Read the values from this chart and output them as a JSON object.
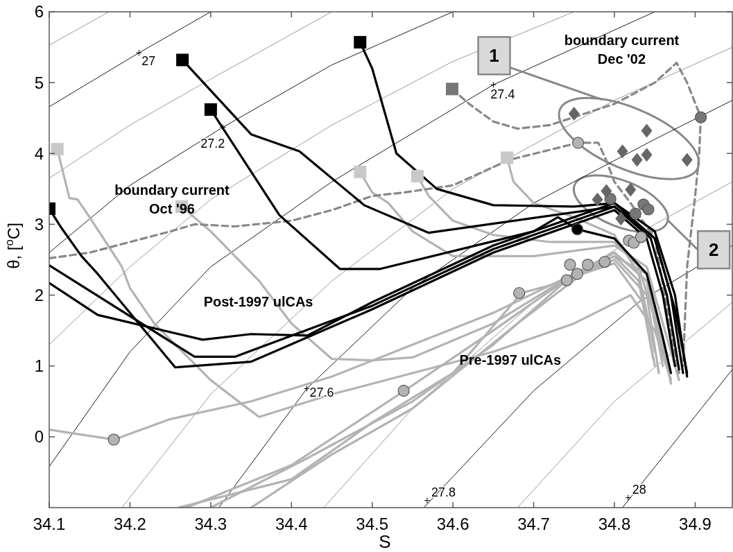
{
  "chart_data": {
    "type": "line",
    "xlabel": "S",
    "ylabel": "θ, [$^{o}$C]",
    "xlim": [
      34.1,
      34.946
    ],
    "ylim": [
      -1,
      6
    ],
    "xticks": [
      34.1,
      34.2,
      34.3,
      34.4,
      34.5,
      34.6,
      34.7,
      34.8,
      34.9
    ],
    "yticks": [
      0,
      1,
      2,
      3,
      4,
      5,
      6
    ],
    "grid": false,
    "series": [
      {
        "color": "#999999",
        "x": [
          34.1,
          34.174
        ],
        "values": [
          5.53,
          6.0
        ]
      },
      {
        "color": "#1a1a1a",
        "x": [
          34.1,
          34.211,
          34.3
        ],
        "values": [
          4.66,
          5.42,
          6.0
        ]
      },
      {
        "color": "#999999",
        "x": [
          34.1,
          34.2,
          34.3,
          34.45
        ],
        "values": [
          3.65,
          4.4,
          5.05,
          6.0
        ]
      },
      {
        "color": "#1a1a1a",
        "x": [
          34.1,
          34.2,
          34.315,
          34.45,
          34.6
        ],
        "values": [
          2.6,
          3.55,
          4.37,
          5.25,
          6.0
        ]
      },
      {
        "color": "#999999",
        "x": [
          34.1,
          34.2,
          34.3,
          34.45,
          34.6,
          34.75
        ],
        "values": [
          1.3,
          2.4,
          3.35,
          4.4,
          5.3,
          6.0
        ]
      },
      {
        "color": "#1a1a1a",
        "x": [
          34.1,
          34.2,
          34.3,
          34.45,
          34.65,
          34.85
        ],
        "values": [
          -0.42,
          1.2,
          2.4,
          3.6,
          4.97,
          6.0
        ]
      },
      {
        "color": "#999999",
        "x": [
          34.19,
          34.3,
          34.45,
          34.6,
          34.8,
          34.946
        ],
        "values": [
          -1,
          0.6,
          2.2,
          3.5,
          4.75,
          5.5
        ]
      },
      {
        "color": "#1a1a1a",
        "x": [
          34.31,
          34.419,
          34.55,
          34.7,
          34.85,
          34.946
        ],
        "values": [
          -1,
          0.68,
          2.1,
          3.3,
          4.2,
          4.75
        ]
      },
      {
        "color": "#999999",
        "x": [
          34.44,
          34.55,
          34.7,
          34.85,
          34.946
        ],
        "values": [
          -1,
          0.4,
          1.9,
          3.0,
          3.6
        ]
      },
      {
        "color": "#1a1a1a",
        "x": [
          34.564,
          34.7,
          34.83,
          34.946
        ],
        "values": [
          -1,
          0.65,
          1.9,
          2.7
        ]
      },
      {
        "color": "#999999",
        "x": [
          34.68,
          34.8,
          34.946
        ],
        "values": [
          -1,
          0.5,
          1.9
        ]
      },
      {
        "color": "#1a1a1a",
        "x": [
          34.81,
          34.946
        ],
        "values": [
          -1,
          0.95
        ]
      },
      {
        "color": "#b3b3b3",
        "x": [
          34.11,
          34.125,
          34.135,
          34.15,
          34.19,
          34.2,
          34.23,
          34.3,
          34.34,
          34.36,
          34.45,
          34.55,
          34.65,
          34.75,
          34.82,
          34.85,
          34.87
        ],
        "values": [
          4.06,
          3.37,
          3.35,
          3.1,
          2.4,
          2.1,
          1.6,
          0.8,
          0.45,
          0.28,
          0.6,
          0.9,
          1.2,
          1.6,
          2.0,
          1.5,
          0.8
        ]
      },
      {
        "color": "#b3b3b3",
        "x": [
          34.264,
          34.3,
          34.36,
          34.4,
          34.45,
          34.5,
          34.55,
          34.65,
          34.75,
          34.8,
          34.84,
          34.86,
          34.87
        ],
        "values": [
          3.25,
          2.9,
          2.2,
          1.6,
          1.1,
          1.08,
          1.12,
          1.6,
          2.3,
          2.6,
          2.2,
          1.2,
          0.8
        ]
      },
      {
        "color": "#b3b3b3",
        "x": [
          34.1,
          34.18,
          34.25,
          34.35,
          34.45,
          34.55,
          34.65,
          34.75,
          34.8,
          34.84,
          34.86
        ],
        "values": [
          0.1,
          -0.04,
          0.25,
          0.5,
          0.85,
          1.3,
          1.75,
          2.3,
          2.6,
          2.2,
          1.0
        ]
      },
      {
        "color": "#b3b3b3",
        "x": [
          34.485,
          34.5,
          34.52,
          34.55,
          34.6,
          34.7,
          34.8,
          34.84,
          34.865,
          34.88
        ],
        "values": [
          3.74,
          3.45,
          3.3,
          2.9,
          2.55,
          2.55,
          2.7,
          2.4,
          1.4,
          0.8
        ]
      },
      {
        "color": "#b3b3b3",
        "x": [
          34.556,
          34.57,
          34.6,
          34.65,
          34.72,
          34.8,
          34.83,
          34.86,
          34.87
        ],
        "values": [
          3.68,
          3.4,
          3.05,
          2.85,
          2.75,
          2.75,
          2.4,
          1.3,
          0.75
        ]
      },
      {
        "color": "#b3b3b3",
        "x": [
          34.667,
          34.675,
          34.7,
          34.75,
          34.8,
          34.83,
          34.85
        ],
        "values": [
          3.94,
          3.6,
          3.3,
          3.1,
          2.85,
          2.3,
          1.2
        ]
      },
      {
        "color": "#b3b3b3",
        "x": [
          34.27,
          34.4,
          34.54,
          34.65,
          34.75,
          34.8,
          34.83,
          34.85
        ],
        "values": [
          -1,
          -0.4,
          0.65,
          1.5,
          2.3,
          2.55,
          2.2,
          1.0
        ]
      },
      {
        "color": "#b3b3b3",
        "x": [
          34.3,
          34.42,
          34.55,
          34.65,
          34.74,
          34.8,
          34.84,
          34.855
        ],
        "values": [
          -1,
          -0.3,
          0.5,
          1.3,
          2.2,
          2.5,
          2.0,
          0.9
        ]
      },
      {
        "color": "#b3b3b3",
        "x": [
          34.35,
          34.45,
          34.55,
          34.68,
          34.76,
          34.8,
          34.835,
          34.848
        ],
        "values": [
          -1,
          -0.25,
          0.4,
          1.6,
          2.3,
          2.45,
          1.9,
          1.1
        ]
      },
      {
        "color": "#b3b3b3",
        "x": [
          34.26,
          34.4,
          34.5,
          34.6,
          34.685,
          34.743,
          34.8,
          34.84,
          34.86
        ],
        "values": [
          -1,
          -0.6,
          0.2,
          0.9,
          2.03,
          2.21,
          2.55,
          2.3,
          1.2
        ]
      },
      {
        "color": "#888888",
        "line_style": "dashed",
        "x": [
          34.1,
          34.15,
          34.2,
          34.25,
          34.28,
          34.33,
          34.4,
          34.45,
          34.5,
          34.54,
          34.6,
          34.67,
          34.755,
          34.78,
          34.79,
          34.8,
          34.82,
          34.85,
          34.87,
          34.88
        ],
        "values": [
          2.52,
          2.6,
          2.75,
          2.9,
          3.0,
          2.97,
          3.05,
          3.2,
          3.4,
          3.45,
          3.55,
          3.91,
          4.15,
          4.15,
          3.9,
          3.6,
          3.3,
          2.8,
          1.5,
          0.9
        ]
      },
      {
        "color": "#888888",
        "line_style": "dashed",
        "x": [
          34.599,
          34.62,
          34.65,
          34.68,
          34.72,
          34.76,
          34.8,
          34.85,
          34.877,
          34.89,
          34.907,
          34.905,
          34.9,
          34.89,
          34.885
        ],
        "values": [
          4.91,
          4.7,
          4.45,
          4.35,
          4.4,
          4.55,
          4.7,
          5.0,
          5.28,
          5.0,
          4.51,
          4.0,
          3.4,
          2.4,
          1.0
        ]
      },
      {
        "color": "#000000",
        "x": [
          34.1,
          34.115,
          34.14,
          34.16,
          34.256,
          34.35,
          34.5,
          34.65,
          34.8,
          34.84,
          34.86,
          34.875
        ],
        "values": [
          3.22,
          2.95,
          2.55,
          2.3,
          0.98,
          1.06,
          1.8,
          2.6,
          3.2,
          2.8,
          2.0,
          1.0
        ]
      },
      {
        "color": "#000000",
        "x": [
          34.1,
          34.28,
          34.33,
          34.5,
          34.65,
          34.8,
          34.845,
          34.865,
          34.88
        ],
        "values": [
          2.42,
          1.13,
          1.13,
          1.85,
          2.65,
          3.25,
          2.8,
          2.0,
          0.95
        ]
      },
      {
        "color": "#000000",
        "x": [
          34.1,
          34.16,
          34.29,
          34.35,
          34.42,
          34.5,
          34.65,
          34.8,
          34.85,
          34.87,
          34.885
        ],
        "values": [
          2.17,
          1.72,
          1.37,
          1.45,
          1.43,
          1.9,
          2.7,
          3.3,
          2.8,
          2.0,
          0.9
        ]
      },
      {
        "color": "#000000",
        "x": [
          34.265,
          34.35,
          34.41,
          34.49,
          34.57,
          34.8,
          34.85,
          34.875,
          34.89
        ],
        "values": [
          5.32,
          4.27,
          4.03,
          3.27,
          2.88,
          3.25,
          2.8,
          1.8,
          0.9
        ]
      },
      {
        "color": "#000000",
        "x": [
          34.3,
          34.385,
          34.46,
          34.51,
          34.7,
          34.73,
          34.754,
          34.8,
          34.84,
          34.86,
          34.87
        ],
        "values": [
          4.62,
          3.13,
          2.37,
          2.37,
          2.9,
          3.1,
          2.93,
          2.8,
          2.3,
          1.4,
          0.9
        ]
      },
      {
        "color": "#000000",
        "x": [
          34.485,
          34.5,
          34.53,
          34.58,
          34.65,
          34.75,
          34.8,
          34.85,
          34.875,
          34.89
        ],
        "values": [
          5.57,
          5.2,
          4.0,
          3.5,
          3.27,
          3.25,
          3.3,
          2.9,
          2.0,
          0.85
        ]
      },
      {
        "type": "scatter",
        "marker": "square",
        "color": "#000000",
        "x": [
          34.1,
          34.265,
          34.3,
          34.485
        ],
        "values": [
          3.22,
          5.32,
          4.62,
          5.57
        ]
      },
      {
        "type": "scatter",
        "marker": "square",
        "color": "#c8c8c8",
        "x": [
          34.11,
          34.264,
          34.485,
          34.556,
          34.667
        ],
        "values": [
          4.06,
          3.25,
          3.74,
          3.68,
          3.94
        ]
      },
      {
        "type": "scatter",
        "marker": "square",
        "color": "#777777",
        "x": [
          34.599
        ],
        "values": [
          4.91
        ]
      },
      {
        "type": "scatter",
        "marker": "circle",
        "color": "#b3b3b3",
        "x": [
          34.18,
          34.539,
          34.682,
          34.741,
          34.754,
          34.745,
          34.767,
          34.788,
          34.818,
          34.824,
          34.833,
          34.755
        ],
        "values": [
          -0.04,
          0.65,
          2.03,
          2.21,
          2.3,
          2.43,
          2.43,
          2.47,
          2.77,
          2.74,
          2.82,
          4.15
        ]
      },
      {
        "type": "scatter",
        "marker": "circle",
        "color": "#777777",
        "x": [
          34.907,
          34.795,
          34.826,
          34.836,
          34.842
        ],
        "values": [
          4.51,
          3.36,
          3.15,
          3.28,
          3.21
        ]
      },
      {
        "type": "scatter",
        "marker": "circle",
        "color": "#000000",
        "x": [
          34.754
        ],
        "values": [
          2.93
        ]
      },
      {
        "type": "scatter",
        "marker": "diamond",
        "color": "#666666",
        "x": [
          34.75,
          34.84,
          34.81,
          34.84,
          34.828,
          34.89,
          34.79,
          34.779,
          34.82,
          34.808
        ],
        "values": [
          4.56,
          4.32,
          4.03,
          3.98,
          3.91,
          3.91,
          3.47,
          3.35,
          3.49,
          3.08
        ]
      }
    ],
    "annotations": [
      "boundary current\nOct '96",
      "boundary current\nDec '02",
      "Post-1997 ulCAs",
      "Pre-1997 ulCAs",
      "1",
      {
        "text": "2",
        "x": 34.865,
        "y": 3.07
      },
      {
        "text": "27",
        "x": 34.211,
        "y": 5.42
      },
      {
        "text": "27.2",
        "x": 34.315,
        "y": 4.37
      },
      {
        "text": "27.4",
        "x": 34.65,
        "y": 4.97
      },
      {
        "text": "27.6",
        "x": 34.419,
        "y": 0.68
      },
      {
        "text": "27.8",
        "x": 34.568,
        "y": -0.9
      },
      {
        "text": "28",
        "x": 34.817,
        "y": -0.86
      }
    ]
  }
}
